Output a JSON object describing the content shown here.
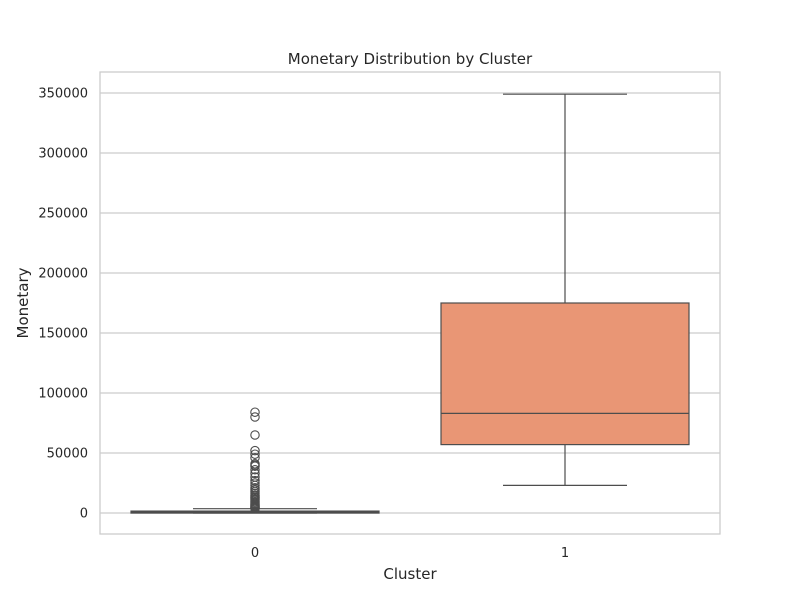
{
  "chart_data": {
    "type": "box",
    "title": "Monetary Distribution by Cluster",
    "xlabel": "Cluster",
    "ylabel": "Monetary",
    "categories": [
      "0",
      "1"
    ],
    "ylim": [
      -17500,
      367500
    ],
    "yticks": [
      0,
      50000,
      100000,
      150000,
      200000,
      250000,
      300000,
      350000
    ],
    "grid": true,
    "boxes": [
      {
        "category": "0",
        "whisker_low": 0,
        "q1": 300,
        "median": 700,
        "q3": 1600,
        "whisker_high": 3600,
        "color": "#66c2a5",
        "outliers": [
          3800,
          4200,
          4700,
          5200,
          5800,
          6500,
          7200,
          8000,
          9000,
          10000,
          11000,
          12000,
          13000,
          14000,
          15000,
          16500,
          18000,
          19500,
          21000,
          23000,
          25000,
          27000,
          30000,
          33000,
          36000,
          39000,
          40000,
          41000,
          46000,
          49000,
          52000,
          65000,
          80000,
          84000
        ]
      },
      {
        "category": "1",
        "whisker_low": 23000,
        "q1": 57000,
        "median": 83000,
        "q3": 175000,
        "whisker_high": 349000,
        "color": "#e99675",
        "outliers": []
      }
    ]
  },
  "colors": {
    "background": "#ffffff",
    "grid": "#cccccc",
    "spine": "#cccccc",
    "box_edge": "#4d4d4d",
    "text": "#262626"
  }
}
